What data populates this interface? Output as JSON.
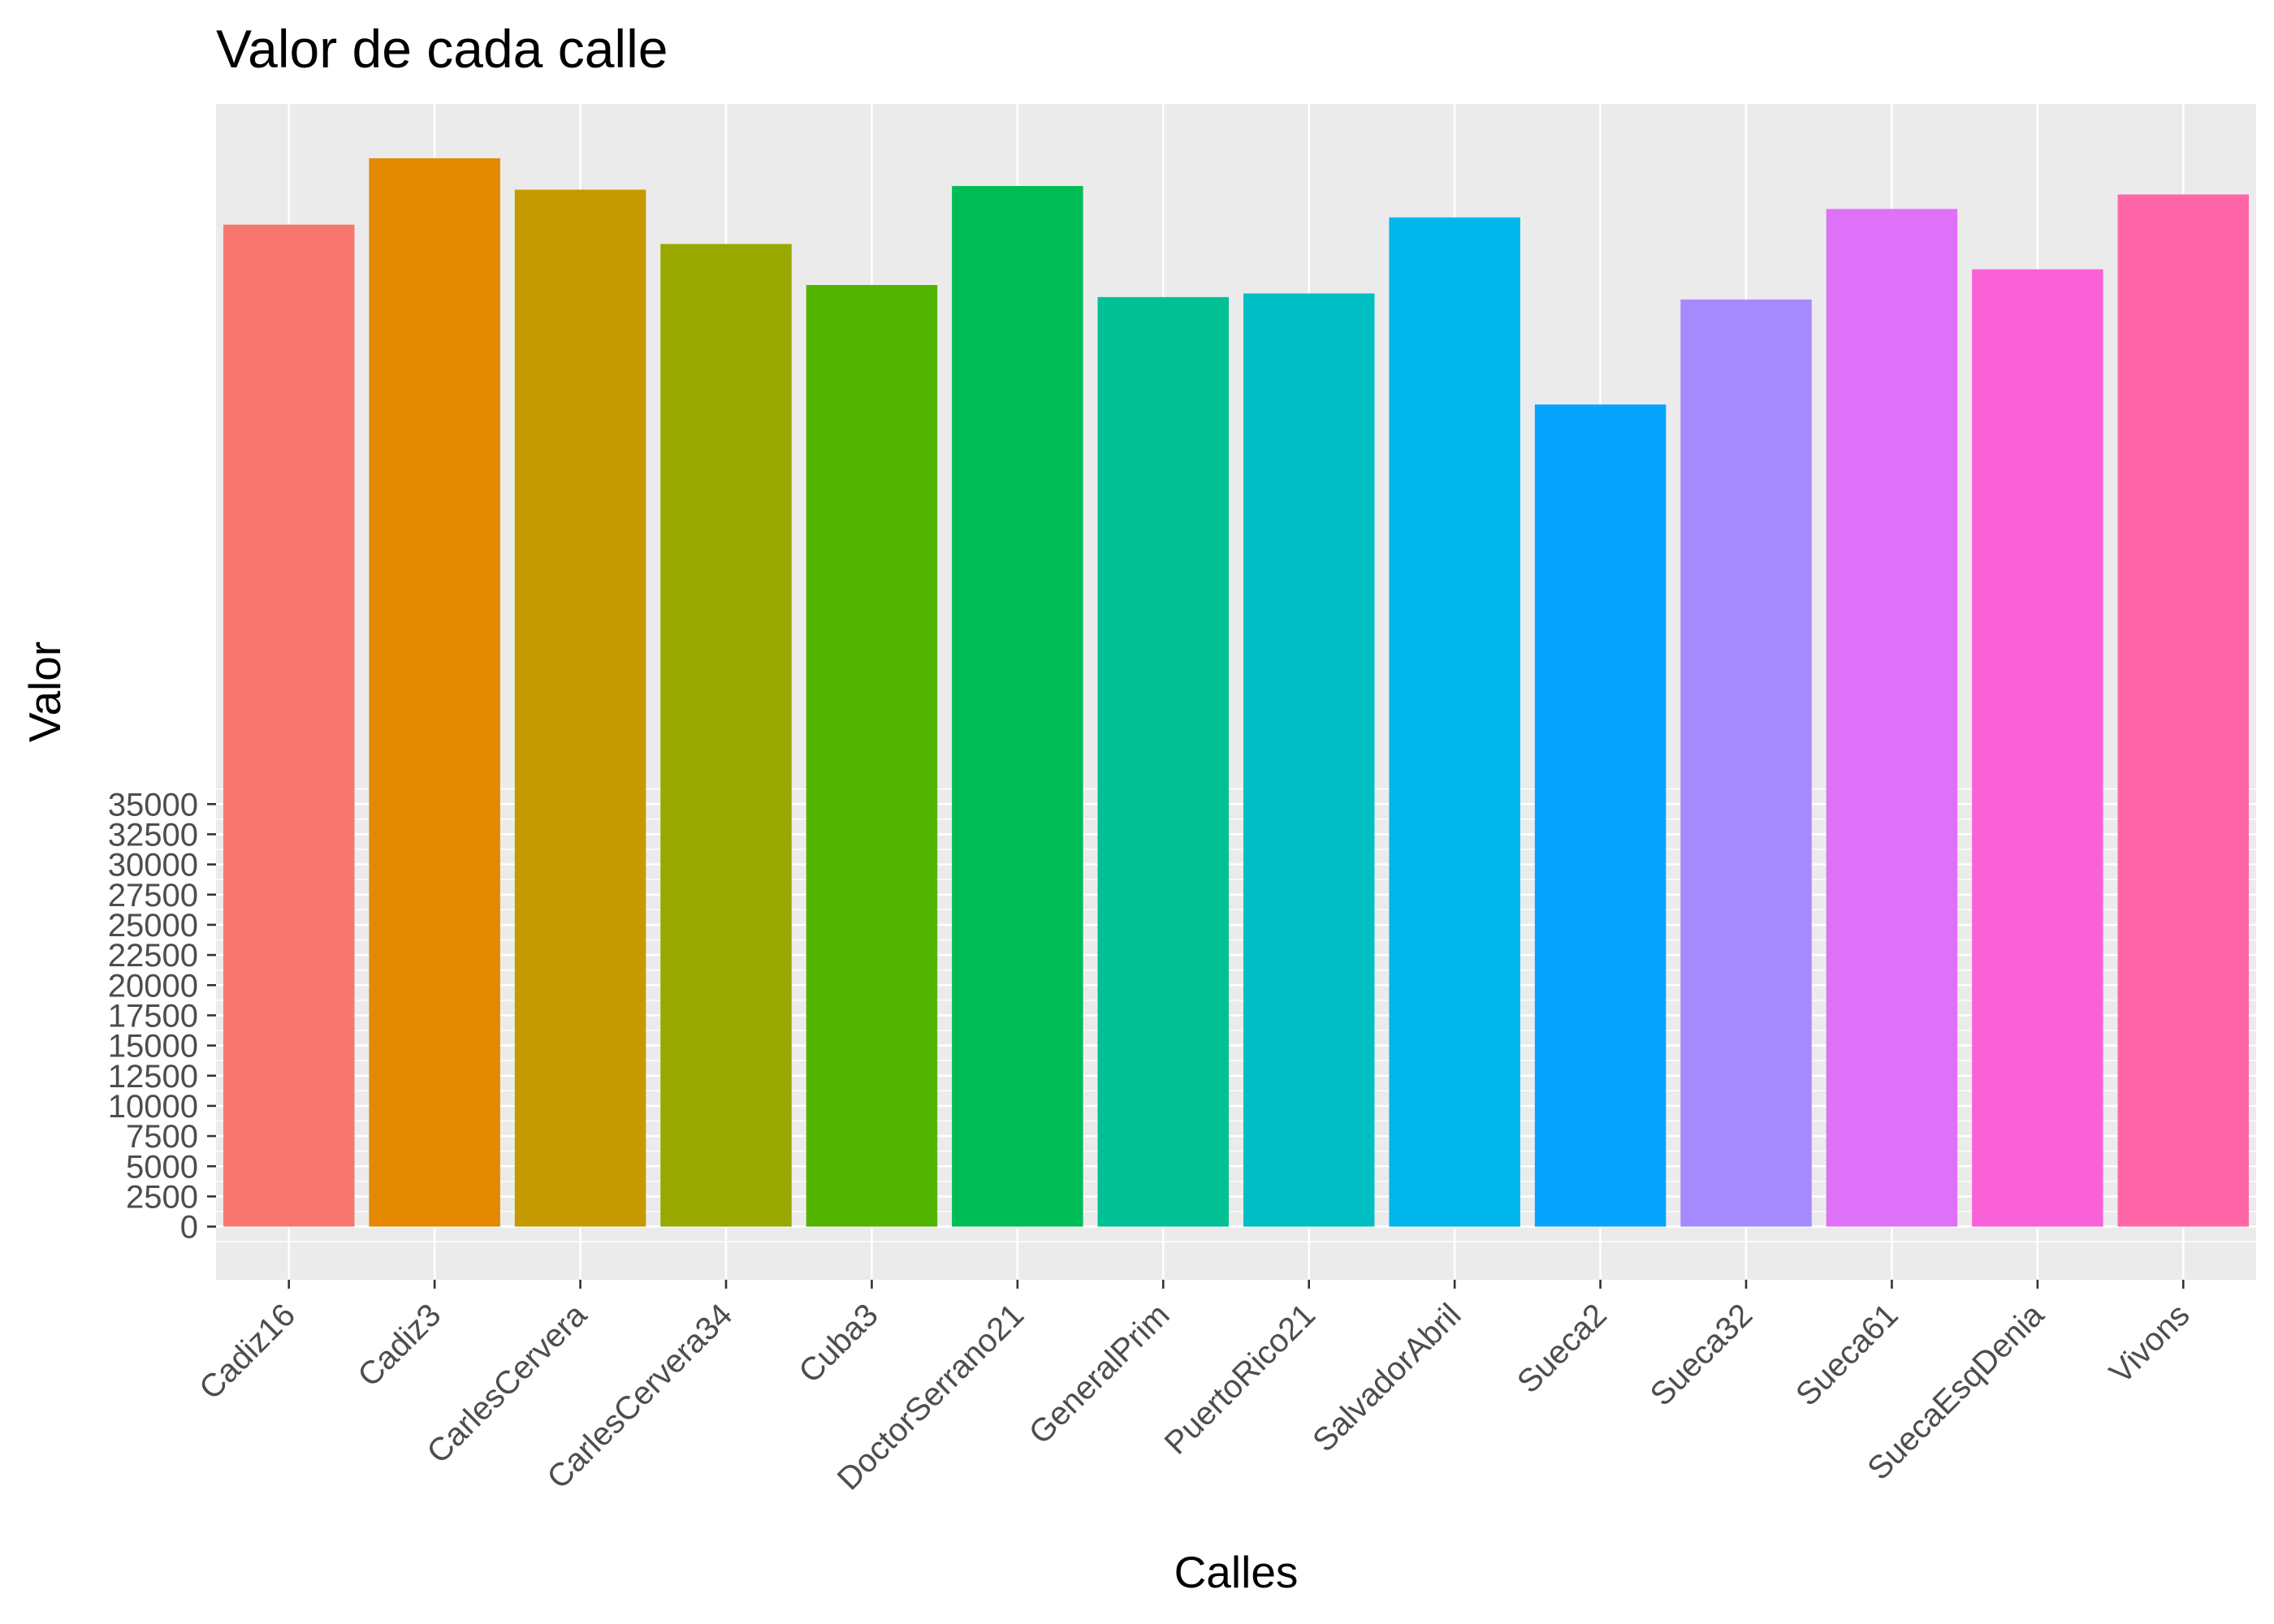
{
  "chart_data": {
    "type": "bar",
    "title": "Valor de cada calle",
    "xlabel": "Calles",
    "ylabel": "Valor",
    "categories": [
      "Cadiz16",
      "Cadiz3",
      "CarlesCervera",
      "CarlesCervera34",
      "Cuba3",
      "DoctorSerrano21",
      "GeneralPrim",
      "PuertoRico21",
      "SalvadorAbril",
      "Sueca2",
      "Sueca32",
      "Sueca61",
      "SuecaEsqDenia",
      "Vivons"
    ],
    "values": [
      83000,
      88500,
      85900,
      81400,
      78000,
      86200,
      77000,
      77300,
      83600,
      68100,
      76800,
      84300,
      79300,
      85500
    ],
    "colors": [
      "#F8766D",
      "#E38900",
      "#C49A00",
      "#99A800",
      "#53B400",
      "#00BC56",
      "#00C094",
      "#00BFC4",
      "#00B6EB",
      "#06A4FF",
      "#A58AFF",
      "#DF70F8",
      "#FB61D7",
      "#FF66A8"
    ],
    "y_ticks": [
      0,
      2500,
      5000,
      7500,
      10000,
      12500,
      15000,
      17500,
      20000,
      22500,
      25000,
      27500,
      30000,
      32500,
      35000
    ],
    "y_tick_labels": [
      "0",
      "2500",
      "5000",
      "7500",
      "10000",
      "12500",
      "15000",
      "17500",
      "20000",
      "22500",
      "25000",
      "27500",
      "30000",
      "32500",
      "35000"
    ],
    "ylim": [
      -4400,
      93000
    ],
    "grid": true,
    "legend": "none",
    "background": "#EBEBEB",
    "grid_color": "#FFFFFF"
  }
}
